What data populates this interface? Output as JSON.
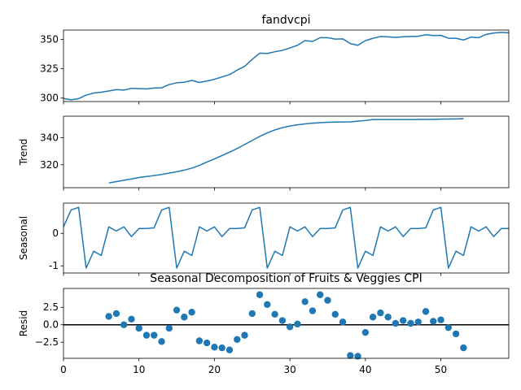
{
  "chart_data": {
    "type": "line",
    "figure_title": "Seasonal Decomposition of Fruits & Veggies CPI",
    "x_range": [
      0,
      59
    ],
    "x_ticks": [
      0,
      10,
      20,
      30,
      40,
      50
    ],
    "line_color": "#1f77b4",
    "panels": [
      {
        "title": "fandvcpi",
        "ylabel": "",
        "kind": "line",
        "ylim": [
          297,
          358
        ],
        "yticks": [
          300,
          325,
          350
        ],
        "x": [
          0,
          1,
          2,
          3,
          4,
          5,
          6,
          7,
          8,
          9,
          10,
          11,
          12,
          13,
          14,
          15,
          16,
          17,
          18,
          19,
          20,
          21,
          22,
          23,
          24,
          25,
          26,
          27,
          28,
          29,
          30,
          31,
          32,
          33,
          34,
          35,
          36,
          37,
          38,
          39,
          40,
          41,
          42,
          43,
          44,
          45,
          46,
          47,
          48,
          49,
          50,
          51,
          52,
          53,
          54,
          55,
          56,
          57,
          58,
          59
        ],
        "y": [
          299.7,
          298.5,
          299.5,
          302.5,
          304.3,
          305,
          306,
          307.2,
          306.8,
          308.3,
          308,
          307.8,
          308.5,
          308.7,
          311.5,
          313,
          313.5,
          315,
          313.3,
          314.5,
          316,
          318,
          320,
          323.8,
          327,
          333,
          338.3,
          338,
          339.5,
          340.7,
          342.7,
          345,
          349,
          348.3,
          351.5,
          351.5,
          350.3,
          350.5,
          346.5,
          345,
          349,
          351,
          352.5,
          352.2,
          351.8,
          352.3,
          352.5,
          352.7,
          354,
          353.3,
          353.5,
          351,
          351,
          349.5,
          352,
          351.5,
          354.3,
          355.5,
          356,
          355.7
        ]
      },
      {
        "title": "",
        "ylabel": "Trend",
        "kind": "line",
        "ylim": [
          303,
          356
        ],
        "yticks": [
          320,
          340
        ],
        "x": [
          6,
          7,
          8,
          9,
          10,
          11,
          12,
          13,
          14,
          15,
          16,
          17,
          18,
          19,
          20,
          21,
          22,
          23,
          24,
          25,
          26,
          27,
          28,
          29,
          30,
          31,
          32,
          33,
          34,
          35,
          36,
          37,
          38,
          39,
          40,
          41,
          42,
          43,
          44,
          45,
          46,
          47,
          48,
          49,
          50,
          51,
          52,
          53
        ],
        "y": [
          306.5,
          307.5,
          308.5,
          309.5,
          310.5,
          311.3,
          312,
          312.8,
          313.8,
          314.8,
          316,
          317.5,
          319.5,
          322,
          324.3,
          326.8,
          329.3,
          332,
          335,
          338,
          341,
          343.6,
          345.8,
          347.5,
          348.7,
          349.6,
          350.3,
          350.8,
          351.2,
          351.5,
          351.6,
          351.7,
          351.8,
          352.3,
          352.8,
          353.5,
          353.5,
          353.5,
          353.5,
          353.5,
          353.5,
          353.6,
          353.6,
          353.7,
          353.8,
          353.9,
          354,
          354.1
        ]
      },
      {
        "title": "",
        "ylabel": "Seasonal",
        "kind": "line",
        "ylim": [
          -1.22,
          0.93
        ],
        "yticks": [
          -1,
          0
        ],
        "x": [
          0,
          1,
          2,
          3,
          4,
          5,
          6,
          7,
          8,
          9,
          10,
          11,
          12,
          13,
          14,
          15,
          16,
          17,
          18,
          19,
          20,
          21,
          22,
          23,
          24,
          25,
          26,
          27,
          28,
          29,
          30,
          31,
          32,
          33,
          34,
          35,
          36,
          37,
          38,
          39,
          40,
          41,
          42,
          43,
          44,
          45,
          46,
          47,
          48,
          49,
          50,
          51,
          52,
          53,
          54,
          55,
          56,
          57,
          58,
          59
        ],
        "y": [
          0.2,
          0.72,
          0.8,
          -1.07,
          -0.55,
          -0.68,
          0.2,
          0.07,
          0.2,
          -0.1,
          0.15,
          0.15,
          0.17,
          0.72,
          0.8,
          -1.07,
          -0.55,
          -0.68,
          0.2,
          0.07,
          0.2,
          -0.1,
          0.15,
          0.15,
          0.17,
          0.72,
          0.8,
          -1.07,
          -0.55,
          -0.68,
          0.2,
          0.07,
          0.2,
          -0.1,
          0.15,
          0.15,
          0.17,
          0.72,
          0.8,
          -1.07,
          -0.55,
          -0.68,
          0.2,
          0.07,
          0.2,
          -0.1,
          0.15,
          0.15,
          0.17,
          0.72,
          0.8,
          -1.07,
          -0.55,
          -0.68,
          0.2,
          0.07,
          0.2,
          -0.1,
          0.15,
          0.15
        ]
      },
      {
        "title": "",
        "ylabel": "Resid",
        "kind": "scatter",
        "ylim": [
          -4.8,
          5.2
        ],
        "yticks": [
          -2.5,
          0.0,
          2.5
        ],
        "yticklabels": [
          "−2.5",
          "0.0",
          "2.5"
        ],
        "baseline": 0,
        "x": [
          6,
          7,
          8,
          9,
          10,
          11,
          12,
          13,
          14,
          15,
          16,
          17,
          18,
          19,
          20,
          21,
          22,
          23,
          24,
          25,
          26,
          27,
          28,
          29,
          30,
          31,
          32,
          33,
          34,
          35,
          36,
          37,
          38,
          39,
          40,
          41,
          42,
          43,
          44,
          45,
          46,
          47,
          48,
          49,
          50,
          51,
          52,
          53
        ],
        "y": [
          1.2,
          1.6,
          0,
          0.8,
          -0.5,
          -1.5,
          -1.5,
          -2.4,
          -0.5,
          2.1,
          1.1,
          1.8,
          -2.3,
          -2.6,
          -3.2,
          -3.3,
          -3.6,
          -2.1,
          -1.5,
          1.6,
          4.3,
          2.9,
          1.5,
          0.6,
          -0.3,
          0.1,
          3.3,
          2,
          4.3,
          3.5,
          1.5,
          0.4,
          -4.4,
          -4.5,
          -1.1,
          1.1,
          1.7,
          1.1,
          0.2,
          0.6,
          0.2,
          0.4,
          1.9,
          0.5,
          0.7,
          -0.4,
          -1.3,
          -3.3
        ]
      }
    ]
  }
}
